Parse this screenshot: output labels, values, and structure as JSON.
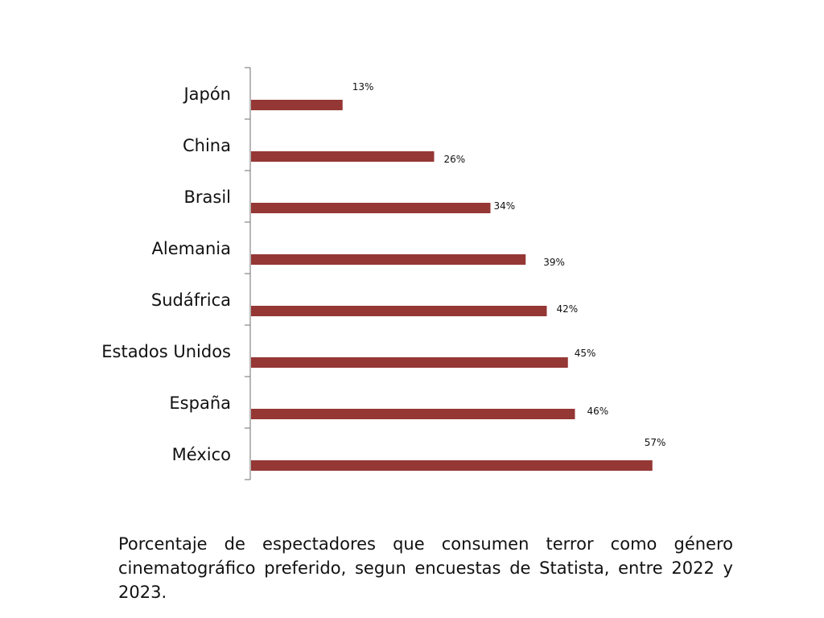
{
  "chart_data": {
    "type": "bar",
    "orientation": "horizontal",
    "categories": [
      "Japón",
      "China",
      "Brasil",
      "Alemania",
      "Sudáfrica",
      "Estados Unidos",
      "España",
      "México"
    ],
    "values": [
      13,
      26,
      34,
      39,
      42,
      45,
      46,
      57
    ],
    "data_labels": [
      "13%",
      "26%",
      "34%",
      "39%",
      "42%",
      "45%",
      "46%",
      "57%"
    ],
    "bar_color": "#953735",
    "axis_color": "#868686",
    "grid": false,
    "legend": "none",
    "xlim": [
      0,
      65
    ]
  },
  "caption": "Porcentaje de espectadores que consumen terror como género cinematográfico preferido, segun encuestas de Statista, entre 2022 y 2023."
}
